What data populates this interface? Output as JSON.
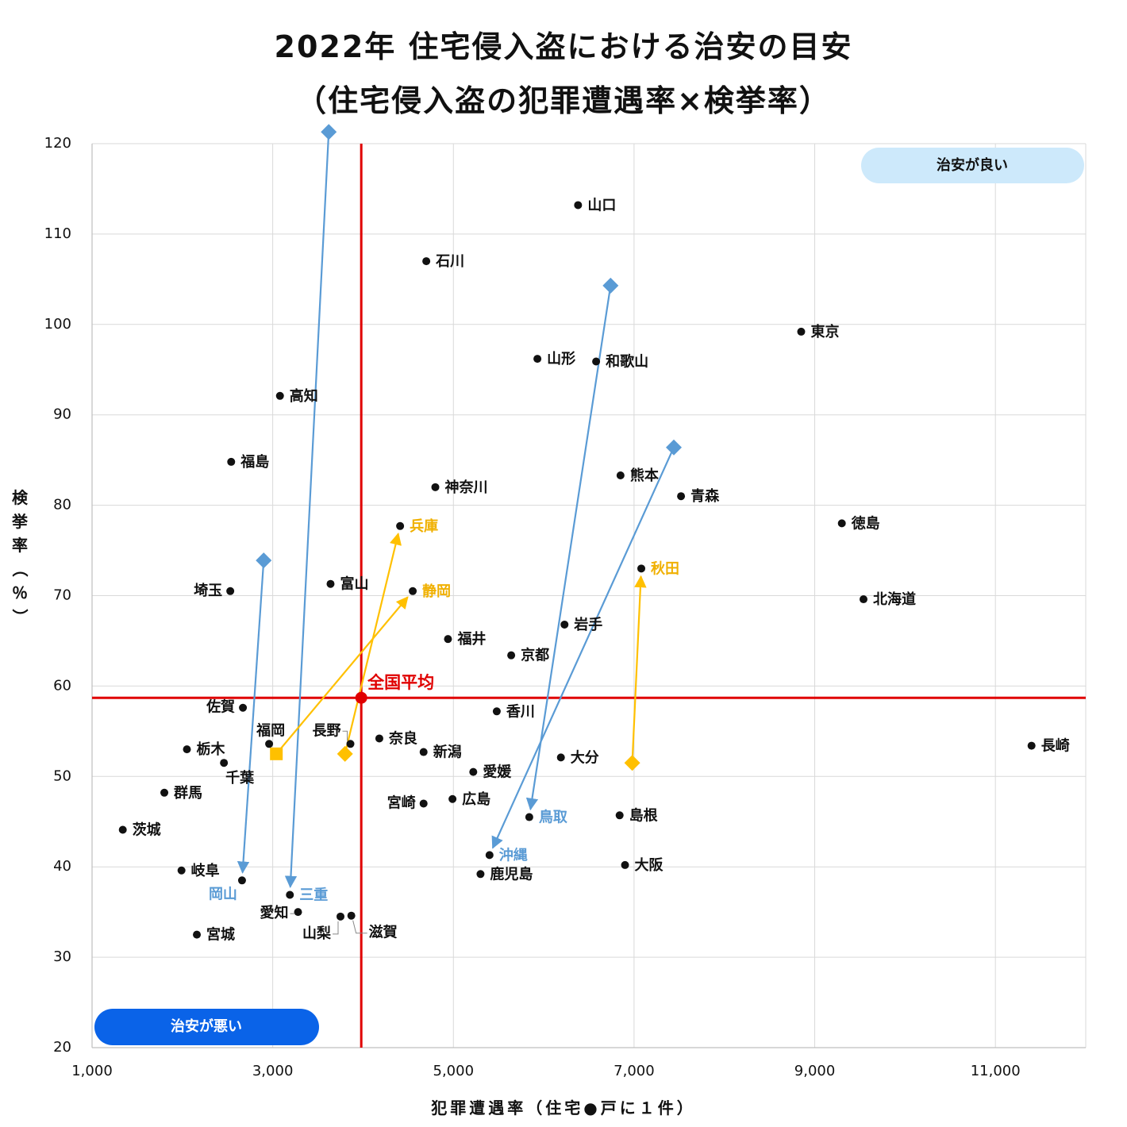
{
  "title_line1": "2022年 住宅侵入盗における治安の目安",
  "title_line2": "（住宅侵入盗の犯罪遭遇率×検挙率）",
  "y_axis_label": [
    "検",
    "挙",
    "率",
    "（",
    "％",
    "）"
  ],
  "x_axis_label": "犯罪遭遇率（住宅●戸に１件）",
  "colors": {
    "point": "#111111",
    "average_line": "#e00000",
    "blue_arrow": "#5a9bd5",
    "orange_arrow": "#ffc000",
    "blue_label": "#5a9bd5",
    "orange_label": "#f0b000",
    "good_badge": "#cde9fb",
    "bad_badge": "#0a63e8",
    "grid": "#d9d9d9"
  },
  "badges": {
    "good": "治安が良い",
    "bad": "治安が悪い"
  },
  "average_label": "全国平均",
  "chart_data": {
    "type": "scatter",
    "xlabel": "犯罪遭遇率（住宅●戸に１件）",
    "ylabel": "検挙率（％）",
    "xlim": [
      1000,
      12000
    ],
    "ylim": [
      20,
      120
    ],
    "x_ticks": [
      1000,
      3000,
      5000,
      7000,
      9000,
      11000
    ],
    "x_tick_labels": [
      "1,000",
      "3,000",
      "5,000",
      "7,000",
      "9,000",
      "11,000"
    ],
    "y_ticks": [
      20,
      30,
      40,
      50,
      60,
      70,
      80,
      90,
      100,
      110,
      120
    ],
    "y_tick_labels": [
      "20",
      "30",
      "40",
      "50",
      "60",
      "70",
      "80",
      "90",
      "100",
      "110",
      "120"
    ],
    "grid": true,
    "average": {
      "label": "全国平均",
      "x": 3980,
      "y": 58.7
    },
    "points": [
      {
        "name": "山口",
        "x": 6380,
        "y": 113.2,
        "label_pos": "right",
        "color": "default"
      },
      {
        "name": "石川",
        "x": 4700,
        "y": 107.0,
        "label_pos": "right",
        "color": "default"
      },
      {
        "name": "東京",
        "x": 8850,
        "y": 99.2,
        "label_pos": "right",
        "color": "default"
      },
      {
        "name": "山形",
        "x": 5930,
        "y": 96.2,
        "label_pos": "right",
        "color": "default"
      },
      {
        "name": "和歌山",
        "x": 6580,
        "y": 95.9,
        "label_pos": "right",
        "color": "default"
      },
      {
        "name": "高知",
        "x": 3080,
        "y": 92.1,
        "label_pos": "right",
        "color": "default"
      },
      {
        "name": "福島",
        "x": 2540,
        "y": 84.8,
        "label_pos": "right",
        "color": "default"
      },
      {
        "name": "神奈川",
        "x": 4800,
        "y": 82.0,
        "label_pos": "right",
        "color": "default"
      },
      {
        "name": "熊本",
        "x": 6850,
        "y": 83.3,
        "label_pos": "right",
        "color": "default"
      },
      {
        "name": "青森",
        "x": 7520,
        "y": 81.0,
        "label_pos": "right",
        "color": "default"
      },
      {
        "name": "徳島",
        "x": 9300,
        "y": 78.0,
        "label_pos": "right",
        "color": "default"
      },
      {
        "name": "兵庫",
        "x": 4410,
        "y": 77.7,
        "label_pos": "right",
        "color": "orange"
      },
      {
        "name": "秋田",
        "x": 7080,
        "y": 73.0,
        "label_pos": "right",
        "color": "orange"
      },
      {
        "name": "富山",
        "x": 3640,
        "y": 71.3,
        "label_pos": "right",
        "color": "default"
      },
      {
        "name": "埼玉",
        "x": 2530,
        "y": 70.5,
        "label_pos": "left",
        "color": "default"
      },
      {
        "name": "静岡",
        "x": 4550,
        "y": 70.5,
        "label_pos": "right",
        "color": "orange"
      },
      {
        "name": "北海道",
        "x": 9540,
        "y": 69.6,
        "label_pos": "right",
        "color": "default"
      },
      {
        "name": "岩手",
        "x": 6230,
        "y": 66.8,
        "label_pos": "right",
        "color": "default"
      },
      {
        "name": "福井",
        "x": 4940,
        "y": 65.2,
        "label_pos": "right",
        "color": "default"
      },
      {
        "name": "京都",
        "x": 5640,
        "y": 63.4,
        "label_pos": "right",
        "color": "default"
      },
      {
        "name": "佐賀",
        "x": 2670,
        "y": 57.6,
        "label_pos": "left",
        "color": "default"
      },
      {
        "name": "香川",
        "x": 5480,
        "y": 57.2,
        "label_pos": "right",
        "color": "default"
      },
      {
        "name": "福岡",
        "x": 2960,
        "y": 53.6,
        "label_pos": "above",
        "color": "default"
      },
      {
        "name": "長野",
        "x": 3860,
        "y": 53.6,
        "label_pos": "above-left",
        "color": "default"
      },
      {
        "name": "奈良",
        "x": 4180,
        "y": 54.2,
        "label_pos": "right",
        "color": "default"
      },
      {
        "name": "長崎",
        "x": 11400,
        "y": 53.4,
        "label_pos": "right",
        "color": "default"
      },
      {
        "name": "栃木",
        "x": 2050,
        "y": 53.0,
        "label_pos": "right",
        "color": "default"
      },
      {
        "name": "新潟",
        "x": 4670,
        "y": 52.7,
        "label_pos": "right",
        "color": "default"
      },
      {
        "name": "大分",
        "x": 6190,
        "y": 52.1,
        "label_pos": "right",
        "color": "default"
      },
      {
        "name": "千葉",
        "x": 2460,
        "y": 51.5,
        "label_pos": "below",
        "color": "default"
      },
      {
        "name": "愛媛",
        "x": 5220,
        "y": 50.5,
        "label_pos": "right",
        "color": "default"
      },
      {
        "name": "群馬",
        "x": 1800,
        "y": 48.2,
        "label_pos": "right",
        "color": "default"
      },
      {
        "name": "広島",
        "x": 4990,
        "y": 47.5,
        "label_pos": "right",
        "color": "default"
      },
      {
        "name": "宮崎",
        "x": 4670,
        "y": 47.0,
        "label_pos": "left",
        "color": "default"
      },
      {
        "name": "鳥取",
        "x": 5840,
        "y": 45.5,
        "label_pos": "right",
        "color": "blue"
      },
      {
        "name": "島根",
        "x": 6840,
        "y": 45.7,
        "label_pos": "right",
        "color": "default"
      },
      {
        "name": "茨城",
        "x": 1340,
        "y": 44.1,
        "label_pos": "right",
        "color": "default"
      },
      {
        "name": "沖縄",
        "x": 5400,
        "y": 41.3,
        "label_pos": "right",
        "color": "blue"
      },
      {
        "name": "大阪",
        "x": 6900,
        "y": 40.2,
        "label_pos": "right",
        "color": "default"
      },
      {
        "name": "岐阜",
        "x": 1990,
        "y": 39.6,
        "label_pos": "right",
        "color": "default"
      },
      {
        "name": "鹿児島",
        "x": 5300,
        "y": 39.2,
        "label_pos": "right",
        "color": "default"
      },
      {
        "name": "岡山",
        "x": 2660,
        "y": 38.5,
        "label_pos": "below-left",
        "color": "blue"
      },
      {
        "name": "三重",
        "x": 3190,
        "y": 36.9,
        "label_pos": "right",
        "color": "blue"
      },
      {
        "name": "愛知",
        "x": 3280,
        "y": 35.0,
        "label_pos": "left-leader",
        "color": "default"
      },
      {
        "name": "山梨",
        "x": 3750,
        "y": 34.5,
        "label_pos": "below-left-leader",
        "color": "default"
      },
      {
        "name": "滋賀",
        "x": 3870,
        "y": 34.6,
        "label_pos": "below-right-leader",
        "color": "default"
      },
      {
        "name": "宮城",
        "x": 2160,
        "y": 32.5,
        "label_pos": "right",
        "color": "default"
      }
    ],
    "movements": [
      {
        "to": "岡山",
        "from": {
          "x": 2900,
          "y": 73.9
        },
        "color": "blue",
        "marker": "diamond"
      },
      {
        "to": "三重",
        "from": {
          "x": 3620,
          "y": 121.3
        },
        "color": "blue",
        "marker": "diamond"
      },
      {
        "to": "鳥取",
        "from": {
          "x": 6740,
          "y": 104.3
        },
        "color": "blue",
        "marker": "diamond"
      },
      {
        "to": "沖縄",
        "from": {
          "x": 7440,
          "y": 86.4
        },
        "color": "blue",
        "marker": "diamond"
      },
      {
        "to": "兵庫",
        "from": {
          "x": 3800,
          "y": 52.5
        },
        "color": "orange",
        "marker": "diamond"
      },
      {
        "to": "静岡",
        "from": {
          "x": 3040,
          "y": 52.5
        },
        "color": "orange",
        "marker": "square"
      },
      {
        "to": "秋田",
        "from": {
          "x": 6980,
          "y": 51.5
        },
        "color": "orange",
        "marker": "diamond"
      }
    ]
  }
}
